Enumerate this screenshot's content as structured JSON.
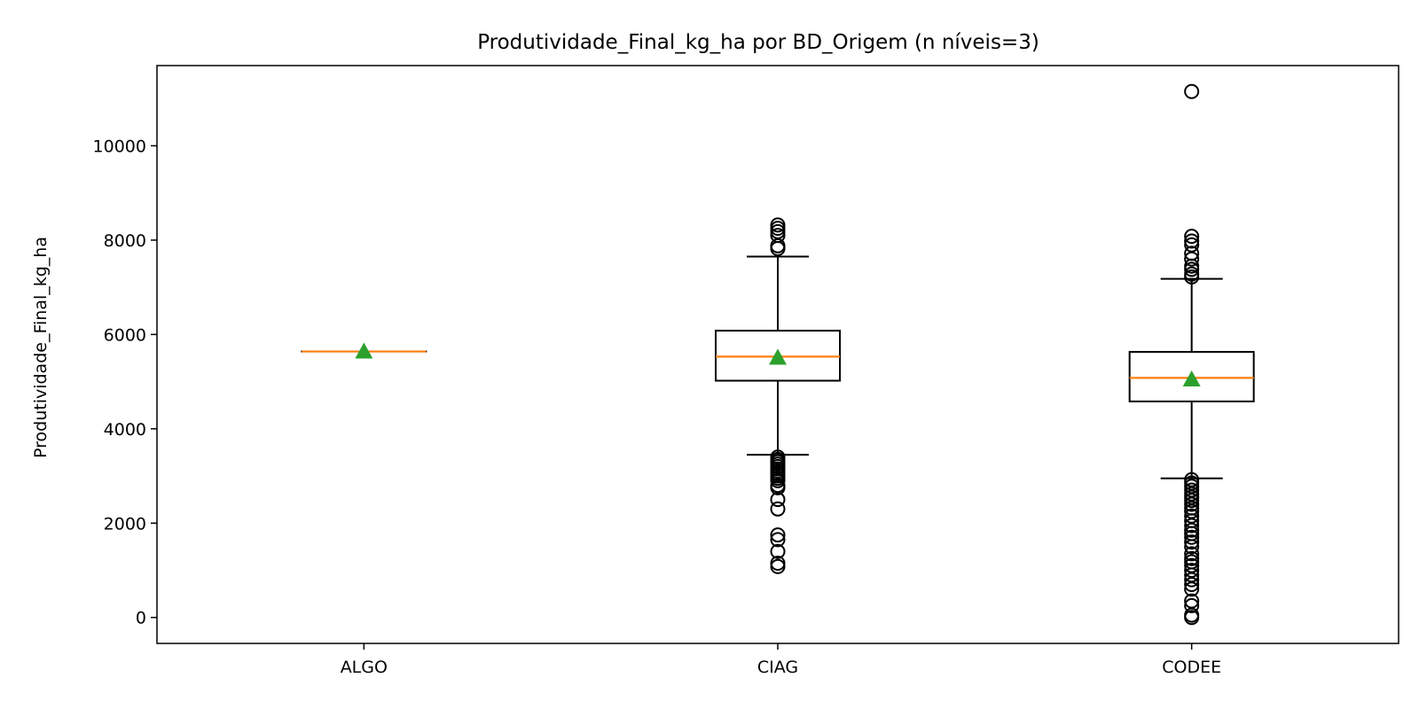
{
  "colors": {
    "box": "#000000",
    "median": "#ff7f0e",
    "mean_marker": "#2ca02c",
    "background": "#ffffff"
  },
  "chart_data": {
    "type": "box",
    "title": "Produtividade_Final_kg_ha por BD_Origem (n níveis=3)",
    "xlabel": "",
    "ylabel": "Produtividade_Final_kg_ha",
    "ylim": [
      -550,
      11700
    ],
    "yticks": [
      0,
      2000,
      4000,
      6000,
      8000,
      10000
    ],
    "ytick_labels": [
      "0",
      "2000",
      "4000",
      "6000",
      "8000",
      "10000"
    ],
    "grid": false,
    "categories": [
      "ALGO",
      "CIAG",
      "CODEE"
    ],
    "boxes": [
      {
        "category": "ALGO",
        "whisker_low": 5640,
        "q1": 5640,
        "median": 5640,
        "q3": 5640,
        "whisker_high": 5640,
        "mean": 5640,
        "outliers": []
      },
      {
        "category": "CIAG",
        "whisker_low": 3450,
        "q1": 5020,
        "median": 5530,
        "q3": 6080,
        "whisker_high": 7650,
        "mean": 5510,
        "outliers": [
          8320,
          8250,
          8180,
          8100,
          7880,
          7820,
          3400,
          3350,
          3300,
          3250,
          3200,
          3150,
          3100,
          3050,
          3000,
          2950,
          2900,
          2800,
          2750,
          2500,
          2300,
          1750,
          1650,
          1400,
          1150,
          1080
        ]
      },
      {
        "category": "CODEE",
        "whisker_low": 2950,
        "q1": 4580,
        "median": 5080,
        "q3": 5630,
        "whisker_high": 7180,
        "mean": 5050,
        "outliers": [
          11150,
          8080,
          7980,
          7900,
          7720,
          7600,
          7450,
          7380,
          7280,
          7220,
          2920,
          2850,
          2780,
          2700,
          2620,
          2550,
          2480,
          2400,
          2320,
          2250,
          2150,
          2050,
          1950,
          1850,
          1780,
          1700,
          1600,
          1500,
          1350,
          1250,
          1180,
          1100,
          1000,
          900,
          800,
          700,
          600,
          350,
          250,
          50,
          0
        ]
      }
    ]
  }
}
